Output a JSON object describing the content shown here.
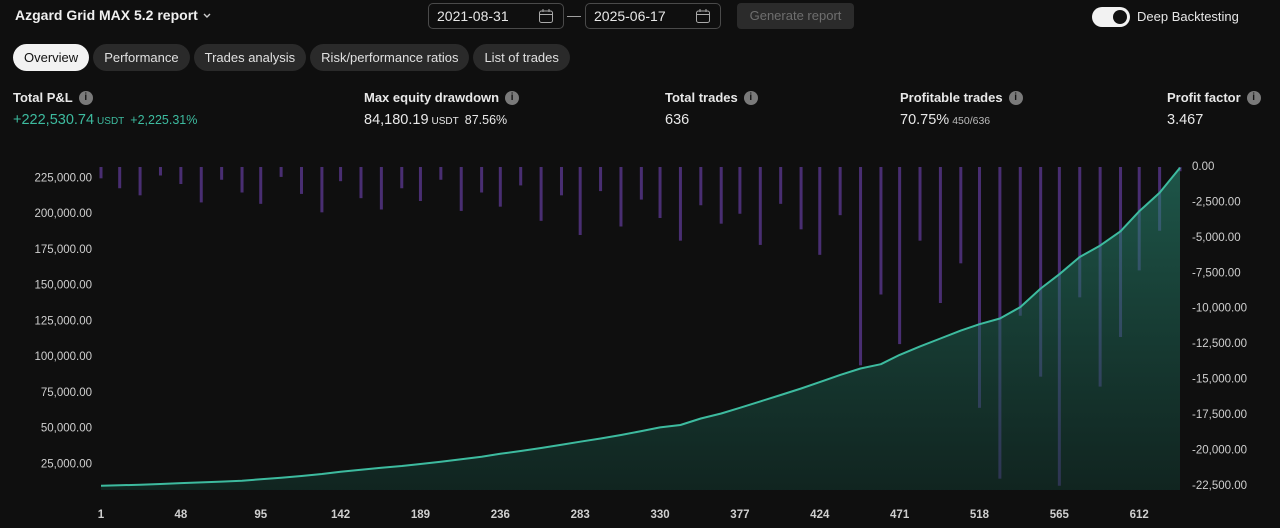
{
  "header": {
    "title": "Azgard Grid MAX 5.2 report",
    "start_date": "2021-08-31",
    "end_date": "2025-06-17",
    "generate_button": "Generate report",
    "toggle_label": "Deep Backtesting",
    "toggle_on": true
  },
  "tabs": [
    "Overview",
    "Performance",
    "Trades analysis",
    "Risk/performance ratios",
    "List of trades"
  ],
  "active_tab": 0,
  "metrics": [
    {
      "label": "Total P&L",
      "value": "+222,530.74",
      "unit": "USDT",
      "extra": "+2,225.31%"
    },
    {
      "label": "Max equity drawdown",
      "value": "84,180.19",
      "unit": "USDT",
      "extra": "87.56%"
    },
    {
      "label": "Total trades",
      "value": "636"
    },
    {
      "label": "Profitable trades",
      "value": "70.75%",
      "extra": "450/636"
    },
    {
      "label": "Profit factor",
      "value": "3.467"
    }
  ],
  "chart_data": {
    "type": "line",
    "x": [
      1,
      12,
      24,
      36,
      48,
      60,
      72,
      84,
      95,
      107,
      119,
      131,
      142,
      154,
      166,
      178,
      189,
      201,
      213,
      225,
      236,
      248,
      260,
      272,
      283,
      295,
      307,
      319,
      330,
      342,
      354,
      366,
      377,
      389,
      401,
      413,
      424,
      436,
      448,
      460,
      471,
      483,
      495,
      507,
      518,
      530,
      542,
      554,
      565,
      577,
      589,
      601,
      612,
      624,
      636
    ],
    "series": [
      {
        "color": "#3dbb9f",
        "type": "line",
        "values": [
          10000,
          10300,
          10700,
          11200,
          11800,
          12300,
          12900,
          13500,
          14500,
          15600,
          16800,
          18200,
          19800,
          21200,
          22600,
          23800,
          25200,
          26800,
          28500,
          30300,
          32300,
          34300,
          36400,
          38600,
          40800,
          43000,
          45500,
          48200,
          50800,
          52500,
          57000,
          60500,
          64500,
          69000,
          73500,
          78000,
          82500,
          87500,
          92000,
          95000,
          101500,
          107500,
          113000,
          118500,
          123000,
          127000,
          135000,
          148000,
          158000,
          170000,
          178000,
          188000,
          202000,
          215000,
          232530
        ]
      },
      {
        "color": "#5e3a94",
        "type": "bar",
        "axis": "y2",
        "values": [
          -800,
          -1500,
          -2000,
          -600,
          -1200,
          -2500,
          -900,
          -1800,
          -2600,
          -700,
          -1900,
          -3200,
          -1000,
          -2200,
          -3000,
          -1500,
          -2400,
          -900,
          -3100,
          -1800,
          -2800,
          -1300,
          -3800,
          -2000,
          -4800,
          -1700,
          -4200,
          -2300,
          -3600,
          -5200,
          -2700,
          -4000,
          -3300,
          -5500,
          -2600,
          -4400,
          -6200,
          -3400,
          -14000,
          -9000,
          -12500,
          -5200,
          -9600,
          -6800,
          -17000,
          -22000,
          -10500,
          -14800,
          -22500,
          -9200,
          -15500,
          -12000,
          -7300,
          -4500,
          -300
        ]
      }
    ],
    "xlim": [
      1,
      636
    ],
    "xticks": [
      1,
      48,
      95,
      142,
      189,
      236,
      283,
      330,
      377,
      424,
      471,
      518,
      565,
      612
    ],
    "ylim": [
      7000,
      233000
    ],
    "yticks": [
      {
        "value": 25000,
        "label": "25,000.00"
      },
      {
        "value": 50000,
        "label": "50,000.00"
      },
      {
        "value": 75000,
        "label": "75,000.00"
      },
      {
        "value": 100000,
        "label": "100,000.00"
      },
      {
        "value": 125000,
        "label": "125,000.00"
      },
      {
        "value": 150000,
        "label": "150,000.00"
      },
      {
        "value": 175000,
        "label": "175,000.00"
      },
      {
        "value": 200000,
        "label": "200,000.00"
      },
      {
        "value": 225000,
        "label": "225,000.00"
      }
    ],
    "y2lim": [
      -22800,
      0
    ],
    "y2ticks": [
      {
        "value": 0,
        "label": "0.00"
      },
      {
        "value": -2500,
        "label": "-2,500.00"
      },
      {
        "value": -5000,
        "label": "-5,000.00"
      },
      {
        "value": -7500,
        "label": "-7,500.00"
      },
      {
        "value": -10000,
        "label": "-10,000.00"
      },
      {
        "value": -12500,
        "label": "-12,500.00"
      },
      {
        "value": -15000,
        "label": "-15,000.00"
      },
      {
        "value": -17500,
        "label": "-17,500.00"
      },
      {
        "value": -20000,
        "label": "-20,000.00"
      },
      {
        "value": -22500,
        "label": "-22,500.00"
      }
    ],
    "grid": false
  }
}
